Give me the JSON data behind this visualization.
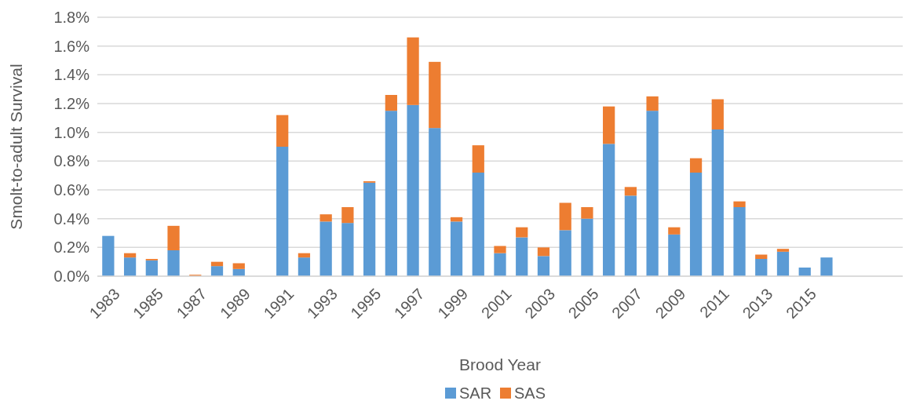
{
  "chart_data": {
    "type": "bar",
    "stacked": true,
    "xlabel": "Brood Year",
    "ylabel": "Smolt-to-adult Survival",
    "categories": [
      "1983",
      null,
      "1985",
      null,
      "1987",
      null,
      "1989",
      null,
      "1991",
      null,
      "1993",
      null,
      "1995",
      null,
      "1997",
      null,
      "1999",
      null,
      "2001",
      null,
      "2003",
      null,
      "2005",
      null,
      "2007",
      null,
      "2009",
      null,
      "2011",
      null,
      "2013",
      null,
      "2015",
      null,
      null,
      null,
      null
    ],
    "series": [
      {
        "name": "SAR",
        "color": "#5b9bd5",
        "values": [
          0.28,
          0.13,
          0.11,
          0.18,
          null,
          0.07,
          0.05,
          null,
          0.9,
          0.13,
          0.38,
          0.37,
          0.65,
          1.15,
          1.19,
          1.03,
          0.38,
          0.72,
          0.16,
          0.27,
          0.14,
          0.32,
          0.4,
          0.92,
          0.56,
          1.15,
          0.29,
          0.72,
          1.02,
          0.48,
          0.12,
          0.17,
          0.06,
          0.13,
          null,
          null,
          null
        ]
      },
      {
        "name": "SAS",
        "color": "#ed7d31",
        "values": [
          0,
          0.03,
          0.01,
          0.17,
          0.01,
          0.03,
          0.04,
          null,
          0.22,
          0.03,
          0.05,
          0.11,
          0.01,
          0.11,
          0.47,
          0.46,
          0.03,
          0.19,
          0.05,
          0.07,
          0.06,
          0.19,
          0.08,
          0.26,
          0.06,
          0.1,
          0.05,
          0.1,
          0.21,
          0.04,
          0.03,
          0.02,
          0,
          0,
          null,
          null,
          null
        ]
      }
    ],
    "ylim": [
      0,
      1.8
    ],
    "yticks": [
      {
        "value": 0,
        "label": "0.0%"
      },
      {
        "value": 0.2,
        "label": "0.2%"
      },
      {
        "value": 0.4,
        "label": "0.4%"
      },
      {
        "value": 0.6,
        "label": "0.6%"
      },
      {
        "value": 0.8,
        "label": "0.8%"
      },
      {
        "value": 1,
        "label": "1.0%"
      },
      {
        "value": 1.2,
        "label": "1.2%"
      },
      {
        "value": 1.4,
        "label": "1.4%"
      },
      {
        "value": 1.6,
        "label": "1.6%"
      },
      {
        "value": 1.8,
        "label": "1.8%"
      }
    ],
    "grid": "y",
    "legend": "bottom"
  }
}
